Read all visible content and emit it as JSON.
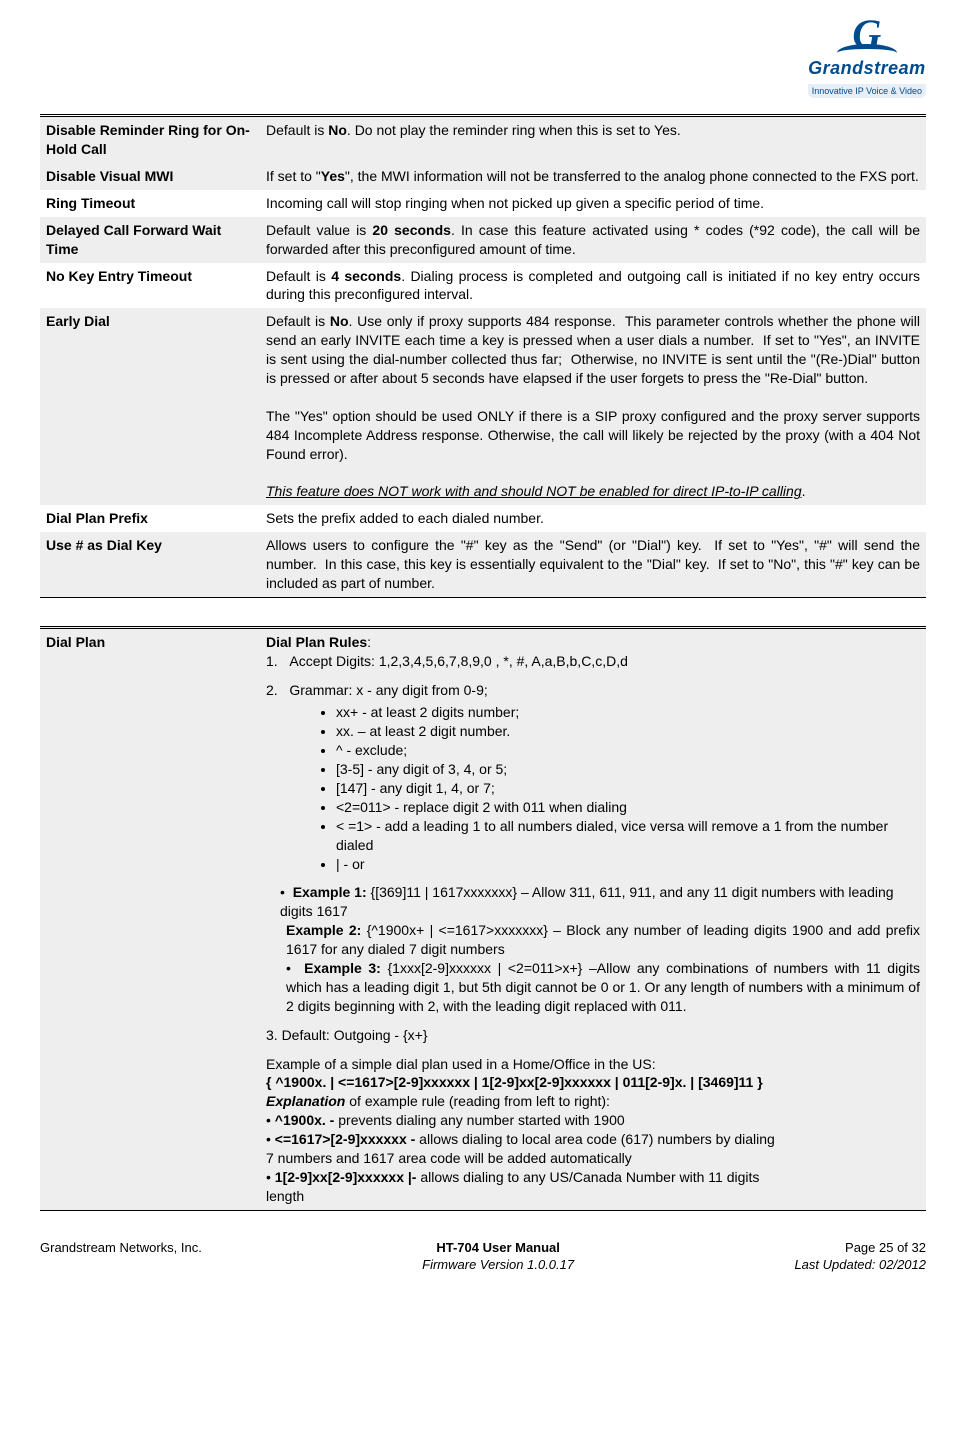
{
  "logo": {
    "brand": "Grandstream",
    "tagline": "Innovative IP Voice & Video",
    "glyph": "G"
  },
  "table1": [
    {
      "shade": true,
      "label": "Disable Reminder Ring for On-Hold Call",
      "desc_html": "Default is <b>No</b>. Do not play the reminder ring when this is set to Yes."
    },
    {
      "shade": true,
      "label": "Disable Visual MWI",
      "desc_html": "If set to \"<b>Yes</b>\", the MWI information will not be transferred to the analog phone connected to the FXS port."
    },
    {
      "shade": false,
      "label": "Ring Timeout",
      "desc_html": "Incoming call will stop ringing when not picked up given a specific period of time."
    },
    {
      "shade": true,
      "label": "Delayed Call Forward Wait Time",
      "desc_html": "Default value is <b>20 seconds</b>. In case this feature activated using * codes (*92 code), the call will be forwarded after this preconfigured amount of time."
    },
    {
      "shade": false,
      "label": "No Key Entry Timeout",
      "desc_html": "Default is <b>4 seconds</b>. Dialing process is completed and outgoing call is initiated if no key entry occurs during this preconfigured interval."
    },
    {
      "shade": true,
      "label": "Early Dial",
      "desc_html": "Default is <b>No</b>. Use only if proxy supports 484 response.&nbsp; This parameter controls whether the phone will send an early INVITE each time a key is pressed when a user dials a number.&nbsp; If set to \"Yes\", an INVITE is sent using the dial-number collected thus far;&nbsp; Otherwise, no INVITE is sent until the \"(Re-)Dial\" button is pressed or after about 5 seconds have elapsed if the user forgets to press the \"Re-Dial\" button.<br><br>The \"Yes\" option should be used ONLY if there is a SIP proxy configured and the proxy server supports 484 Incomplete Address response. Otherwise, the call will likely be rejected by the proxy (with a 404 Not Found error).<br><br><span class='underital'>This feature does NOT work with and should NOT be enabled for direct IP-to-IP calling</span>."
    },
    {
      "shade": false,
      "label": "Dial Plan Prefix",
      "desc_html": "Sets the prefix added to each dialed number."
    },
    {
      "shade": true,
      "label": "Use # as Dial Key",
      "desc_html": "Allows users to configure the \"#\" key as the \"Send\" (or \"Dial\") key.&nbsp; If set to \"Yes\", \"#\" will send the number.&nbsp; In this case, this key is essentially equivalent to the \"Dial\" key.&nbsp; If set to \"No\", this \"#\" key can be included as part of number."
    }
  ],
  "dialplan": {
    "label": "Dial Plan",
    "heading": "Dial Plan Rules",
    "line1": "Accept Digits: 1,2,3,4,5,6,7,8,9,0 , *, #, A,a,B,b,C,c,D,d",
    "line2": "Grammar: x - any digit from 0-9;",
    "bullets": [
      "xx+ - at least 2 digits number;",
      "xx. – at least 2 digit number.",
      "^ - exclude;",
      "[3-5] - any digit of 3, 4, or 5;",
      "[147] - any digit 1, 4, or 7;",
      "<2=011> - replace digit 2 with 011 when dialing",
      "< =1> - add a leading 1 to all numbers dialed, vice versa will remove a 1 from the number dialed",
      "| - or"
    ],
    "ex1_label": "Example 1:",
    "ex1_text": "{[369]11 | 1617xxxxxxx} – Allow 311, 611, 911, and any 11 digit numbers with leading digits 1617",
    "ex2_label": "Example 2:",
    "ex2_text": "{^1900x+ | <=1617>xxxxxxx} – Block any number of leading digits 1900 and add prefix 1617 for any dialed 7 digit numbers",
    "ex3_label": "Example 3:",
    "ex3_text": "{1xxx[2-9]xxxxxx | <2=011>x+} –Allow any combinations of numbers with 11 digits which has a leading digit 1, but 5th digit cannot be 0 or 1. Or any length of numbers with a minimum of 2 digits beginning with 2, with the leading digit replaced with 011.",
    "line3": "3.  Default: Outgoing - {x+}",
    "exsimple_intro": "Example of a simple dial plan used in a Home/Office in the US:",
    "exsimple_rule": "{ ^1900x. | <=1617>[2-9]xxxxxx | 1[2-9]xx[2-9]xxxxxx | 011[2-9]x. | [3469]11 }",
    "expl_label": "Explanation",
    "expl_suffix": " of example rule (reading from left to right):",
    "exp1_b": "^1900x. -",
    "exp1_t": " prevents dialing any number started with 1900",
    "exp2_b": "<=1617>[2-9]xxxxxx -",
    "exp2_t": " allows dialing to local area code (617) numbers by dialing",
    "exp2_t2": "7 numbers and 1617 area code will be added automatically",
    "exp3_b": "1[2-9]xx[2-9]xxxxxx |-",
    "exp3_t": " allows dialing to any US/Canada Number with 11 digits",
    "exp3_t2": "length"
  },
  "footer": {
    "left": "Grandstream Networks, Inc.",
    "center1": "HT-704 User Manual",
    "center2": "Firmware Version 1.0.0.17",
    "right1": "Page 25 of 32",
    "right2": "Last Updated: 02/2012"
  }
}
